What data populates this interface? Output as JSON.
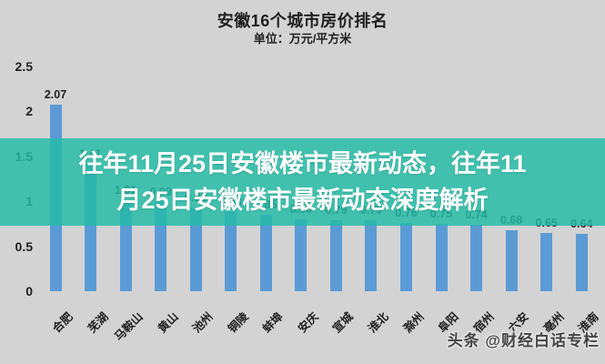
{
  "chart_data": {
    "type": "bar",
    "title": "安徽16个城市房价排名",
    "subtitle": "单位：万元/平方米",
    "categories": [
      "合肥",
      "芜湖",
      "马鞍山",
      "黄山",
      "池州",
      "铜陵",
      "蚌埠",
      "安庆",
      "宣城",
      "淮北",
      "滁州",
      "阜阳",
      "宿州",
      "六安",
      "亳州",
      "淮南"
    ],
    "values": [
      2.07,
      1.41,
      1.01,
      0.99,
      0.93,
      0.88,
      0.85,
      0.8,
      0.79,
      0.79,
      0.76,
      0.75,
      0.74,
      0.68,
      0.65,
      0.64
    ],
    "value_labels": [
      "2.07",
      "1.41",
      "1.01",
      "0.99",
      "0.93",
      "0.88",
      "0.85",
      "0.80",
      "0.79",
      "0.79",
      "0.76",
      "0.75",
      "0.74",
      "0.68",
      "0.65",
      "0.64"
    ],
    "yticks": [
      "0",
      "0.5",
      "1",
      "1.5",
      "2",
      "2.5"
    ],
    "ytick_values": [
      0,
      0.5,
      1,
      1.5,
      2,
      2.5
    ],
    "ylim": [
      0,
      2.5
    ],
    "grid": false,
    "legend": false,
    "bar_color": "#5b9bd5",
    "background_color": "#d3d3d3"
  },
  "overlay": {
    "line1": "往年11月25日安徽楼市最新动态，往年11",
    "line2": "月25日安徽楼市最新动态深度解析",
    "band_color": "#23bca6",
    "text_color": "#ffffff"
  },
  "watermark": {
    "text": "头条 @财经白话专栏"
  }
}
